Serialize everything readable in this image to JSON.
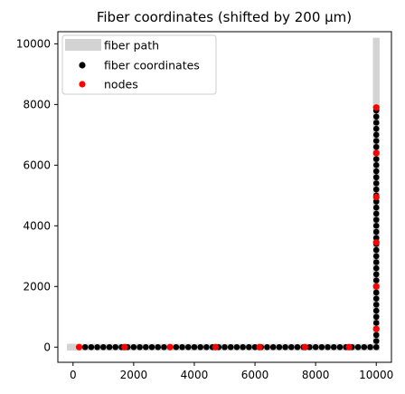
{
  "chart_data": {
    "type": "scatter",
    "title": "Fiber coordinates (shifted by 200 µm)",
    "xlabel": "",
    "ylabel": "",
    "xlim": [
      -500,
      10500
    ],
    "ylim": [
      -500,
      10400
    ],
    "x_ticks": [
      0,
      2000,
      4000,
      6000,
      8000,
      10000
    ],
    "y_ticks": [
      0,
      2000,
      4000,
      6000,
      8000,
      10000
    ],
    "grid": false,
    "legend_position": "upper-left",
    "series": [
      {
        "name": "fiber path",
        "kind": "band",
        "color": "#d3d3d3",
        "points": [
          [
            -200,
            0
          ],
          [
            10000,
            0
          ],
          [
            10000,
            10200
          ]
        ]
      },
      {
        "name": "fiber coordinates",
        "kind": "points",
        "color": "#000000",
        "horizontal_x": [
          200,
          400,
          600,
          800,
          1000,
          1200,
          1400,
          1600,
          1800,
          2000,
          2200,
          2400,
          2600,
          2800,
          3000,
          3200,
          3400,
          3600,
          3800,
          4000,
          4200,
          4400,
          4600,
          4800,
          5000,
          5200,
          5400,
          5600,
          5800,
          6000,
          6200,
          6400,
          6600,
          6800,
          7000,
          7200,
          7400,
          7600,
          7800,
          8000,
          8200,
          8400,
          8600,
          8800,
          9000,
          9200,
          9400,
          9600,
          9800
        ],
        "horizontal_y": 0,
        "vertical_x": 10000,
        "vertical_y": [
          0,
          200,
          400,
          600,
          800,
          1000,
          1200,
          1400,
          1600,
          1800,
          2000,
          2200,
          2400,
          2600,
          2800,
          3000,
          3200,
          3400,
          3600,
          3800,
          4000,
          4200,
          4400,
          4600,
          4800,
          5000,
          5200,
          5400,
          5600,
          5800,
          6000,
          6200,
          6400,
          6600,
          6800,
          7000,
          7200,
          7400,
          7600,
          7800
        ]
      },
      {
        "name": "nodes",
        "kind": "points",
        "color": "#ff0000",
        "points": [
          [
            200,
            0
          ],
          [
            1700,
            0
          ],
          [
            3200,
            0
          ],
          [
            4700,
            0
          ],
          [
            6150,
            0
          ],
          [
            7650,
            0
          ],
          [
            9100,
            0
          ],
          [
            10000,
            600
          ],
          [
            10000,
            2000
          ],
          [
            10000,
            3450
          ],
          [
            10000,
            4950
          ],
          [
            10000,
            6400
          ],
          [
            10000,
            7900
          ]
        ]
      }
    ]
  }
}
